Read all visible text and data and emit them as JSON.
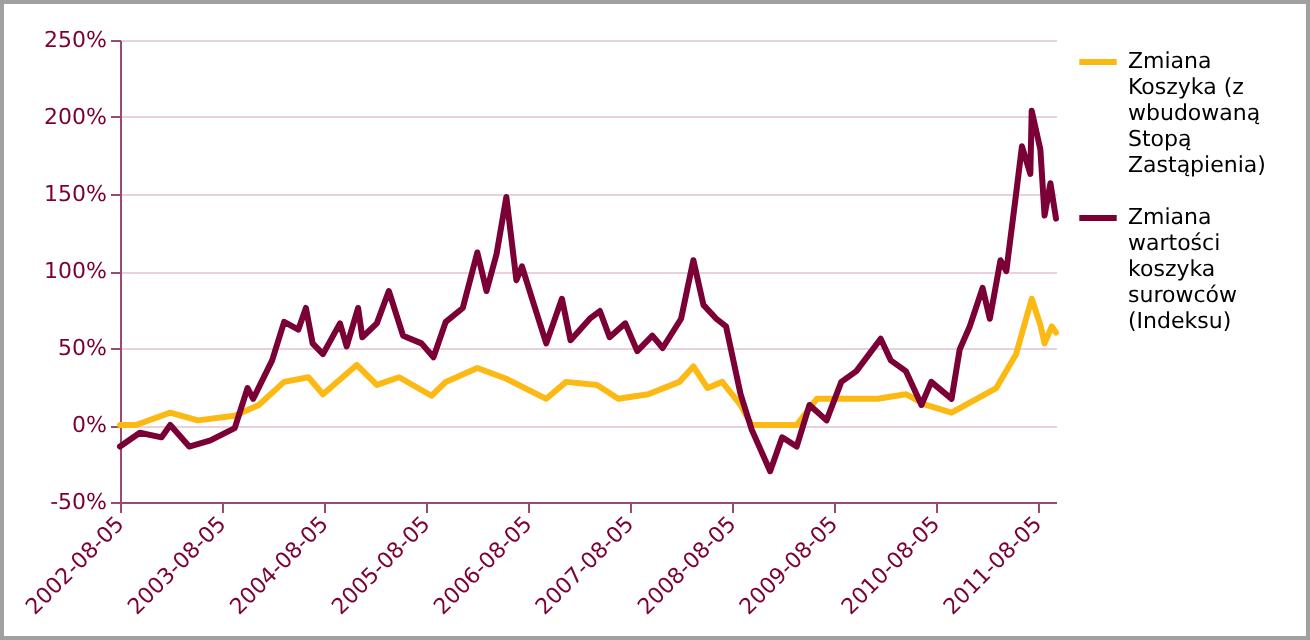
{
  "chart_data": {
    "type": "line",
    "xlim": [
      "2002-08-05",
      "2011-10-10"
    ],
    "xticks": [
      "2002-08-05",
      "2003-08-05",
      "2004-08-05",
      "2005-08-05",
      "2006-08-05",
      "2007-08-05",
      "2008-08-05",
      "2009-08-05",
      "2010-08-05",
      "2011-08-05"
    ],
    "ylim": [
      -50,
      250
    ],
    "yticks": [
      {
        "value": -50,
        "label": "-50%"
      },
      {
        "value": 0,
        "label": "0%"
      },
      {
        "value": 50,
        "label": "50%"
      },
      {
        "value": 100,
        "label": "100%"
      },
      {
        "value": 150,
        "label": "150%"
      },
      {
        "value": 200,
        "label": "200%"
      },
      {
        "value": 250,
        "label": "250%"
      }
    ],
    "grid": "y",
    "legend": "right",
    "marker": "none",
    "line_style": "solid",
    "series": [
      {
        "name": "Zmiana Koszyka (z wbudowaną Stopą Zastąpienia)",
        "color": "#fdb913",
        "x": [
          "2002-08-05",
          "2002-10-01",
          "2003-02-01",
          "2003-05-10",
          "2003-09-20",
          "2003-12-15",
          "2004-03-15",
          "2004-06-10",
          "2004-08-01",
          "2004-11-30",
          "2005-02-10",
          "2005-05-01",
          "2005-08-25",
          "2005-10-15",
          "2006-02-05",
          "2006-05-20",
          "2006-10-10",
          "2006-12-20",
          "2007-04-10",
          "2007-06-25",
          "2007-10-10",
          "2008-01-30",
          "2008-03-20",
          "2008-05-10",
          "2008-07-01",
          "2008-09-05",
          "2008-10-15",
          "2009-03-25",
          "2009-06-05",
          "2010-01-10",
          "2010-04-20",
          "2010-07-01",
          "2010-10-01",
          "2010-12-30",
          "2011-03-10",
          "2011-05-20",
          "2011-07-15",
          "2011-08-15",
          "2011-08-30",
          "2011-09-25",
          "2011-10-10"
        ],
        "values": [
          0,
          0,
          8,
          3,
          6,
          13,
          28,
          31,
          20,
          39,
          26,
          31,
          19,
          28,
          37,
          30,
          17,
          28,
          26,
          17,
          20,
          28,
          38,
          24,
          28,
          13,
          0,
          0,
          17,
          17,
          20,
          13,
          8,
          17,
          24,
          46,
          82,
          65,
          53,
          64,
          60
        ]
      },
      {
        "name": "Zmiana wartości koszyka surowców (Indeksu)",
        "color": "#7a0036",
        "x": [
          "2002-08-05",
          "2002-10-15",
          "2003-01-01",
          "2003-02-01",
          "2003-04-10",
          "2003-06-25",
          "2003-09-20",
          "2003-11-05",
          "2003-11-25",
          "2004-02-01",
          "2004-03-15",
          "2004-05-05",
          "2004-06-01",
          "2004-06-25",
          "2004-08-01",
          "2004-10-01",
          "2004-10-25",
          "2004-12-05",
          "2004-12-20",
          "2005-02-10",
          "2005-03-25",
          "2005-05-15",
          "2005-07-20",
          "2005-09-01",
          "2005-10-15",
          "2005-12-15",
          "2006-02-05",
          "2006-03-10",
          "2006-04-15",
          "2006-05-20",
          "2006-06-25",
          "2006-07-15",
          "2006-08-20",
          "2006-10-10",
          "2006-12-05",
          "2007-01-05",
          "2007-03-15",
          "2007-04-20",
          "2007-05-25",
          "2007-07-20",
          "2007-09-01",
          "2007-10-25",
          "2007-12-01",
          "2008-02-05",
          "2008-03-20",
          "2008-04-25",
          "2008-06-10",
          "2008-07-15",
          "2008-09-05",
          "2008-10-15",
          "2008-12-20",
          "2009-02-01",
          "2009-03-25",
          "2009-05-10",
          "2009-07-10",
          "2009-09-01",
          "2009-10-25",
          "2010-01-20",
          "2010-02-25",
          "2010-04-20",
          "2010-06-15",
          "2010-07-20",
          "2010-10-01",
          "2010-10-30",
          "2010-12-05",
          "2011-01-20",
          "2011-02-15",
          "2011-03-25",
          "2011-04-15",
          "2011-05-20",
          "2011-06-10",
          "2011-07-10",
          "2011-07-15",
          "2011-08-15",
          "2011-08-30",
          "2011-09-20",
          "2011-10-10"
        ],
        "values": [
          -14,
          -5,
          -8,
          0,
          -14,
          -10,
          -2,
          24,
          17,
          42,
          67,
          62,
          76,
          53,
          46,
          66,
          51,
          76,
          57,
          66,
          87,
          58,
          53,
          44,
          67,
          76,
          112,
          87,
          111,
          148,
          94,
          103,
          82,
          53,
          82,
          55,
          69,
          74,
          57,
          66,
          48,
          58,
          50,
          69,
          107,
          78,
          69,
          64,
          20,
          -3,
          -30,
          -8,
          -14,
          13,
          3,
          28,
          35,
          56,
          42,
          35,
          13,
          28,
          17,
          49,
          64,
          89,
          69,
          107,
          100,
          150,
          181,
          163,
          204,
          179,
          136,
          157,
          134
        ]
      }
    ]
  }
}
